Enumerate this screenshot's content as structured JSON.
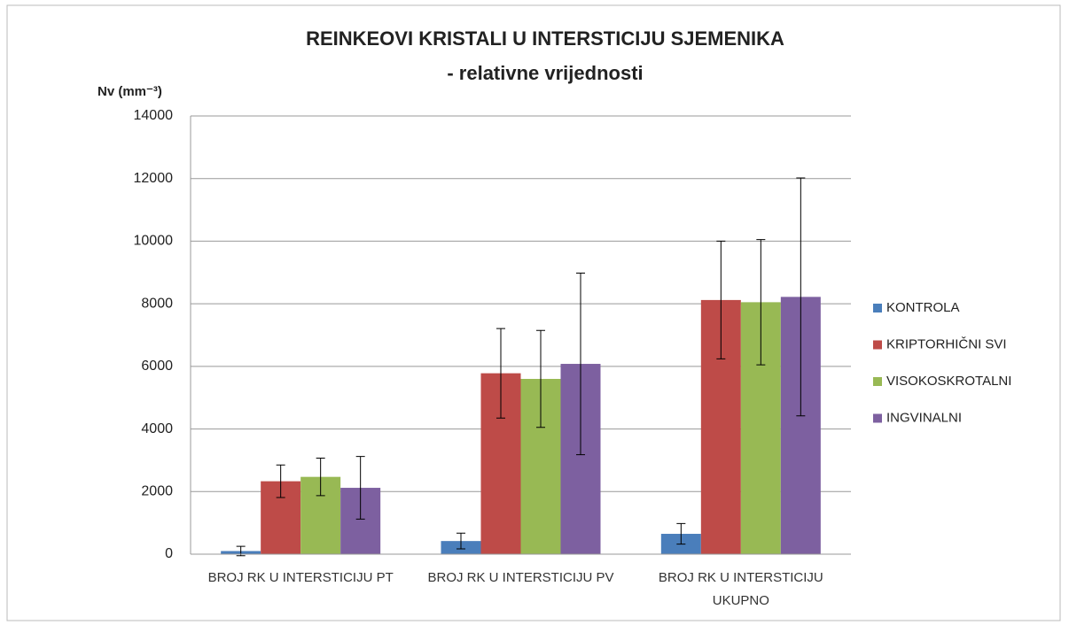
{
  "chart_data": {
    "type": "bar",
    "title": "REINKEOVI KRISTALI U INTERSTICIJU  SJEMENIKA",
    "subtitle": "- relativne vrijednosti",
    "y_label": "Nv (mm⁻³)",
    "categories": [
      "BROJ RK U INTERSTICIJU PT",
      "BROJ RK U INTERSTICIJU PV",
      "BROJ RK U INTERSTICIJU UKUPNO"
    ],
    "series": [
      {
        "name": "KONTROLA",
        "color": "#4a7ebb",
        "values": [
          100,
          420,
          650
        ],
        "errors": [
          150,
          250,
          330
        ]
      },
      {
        "name": "KRIPTORHIČNI SVI",
        "color": "#be4b48",
        "values": [
          2330,
          5780,
          8120
        ],
        "errors": [
          520,
          1430,
          1880
        ]
      },
      {
        "name": "VISOKOSKROTALNI",
        "color": "#98b954",
        "values": [
          2470,
          5600,
          8050
        ],
        "errors": [
          600,
          1550,
          2000
        ]
      },
      {
        "name": "INGVINALNI",
        "color": "#7d60a0",
        "values": [
          2120,
          6080,
          8220
        ],
        "errors": [
          1000,
          2900,
          3800
        ]
      }
    ],
    "ylim": [
      0,
      14000
    ],
    "yticks": [
      0,
      2000,
      4000,
      6000,
      8000,
      10000,
      12000,
      14000
    ],
    "grid": true,
    "legend": "right"
  }
}
